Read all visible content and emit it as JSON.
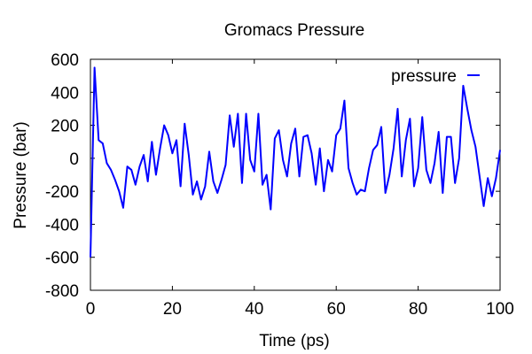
{
  "chart_data": {
    "type": "line",
    "title": "Gromacs Pressure",
    "xlabel": "Time (ps)",
    "ylabel": "Pressure (bar)",
    "xlim": [
      0,
      100
    ],
    "ylim": [
      -800,
      600
    ],
    "xticks": [
      0,
      20,
      40,
      60,
      80,
      100
    ],
    "yticks": [
      -800,
      -600,
      -400,
      -200,
      0,
      200,
      400,
      600
    ],
    "grid": false,
    "legend_position": "top-right",
    "series": [
      {
        "name": "pressure",
        "color": "#0000ff",
        "x": [
          0,
          1,
          2,
          3,
          4,
          5,
          6,
          7,
          8,
          9,
          10,
          11,
          12,
          13,
          14,
          15,
          16,
          17,
          18,
          19,
          20,
          21,
          22,
          23,
          24,
          25,
          26,
          27,
          28,
          29,
          30,
          31,
          32,
          33,
          34,
          35,
          36,
          37,
          38,
          39,
          40,
          41,
          42,
          43,
          44,
          45,
          46,
          47,
          48,
          49,
          50,
          51,
          52,
          53,
          54,
          55,
          56,
          57,
          58,
          59,
          60,
          61,
          62,
          63,
          64,
          65,
          66,
          67,
          68,
          69,
          70,
          71,
          72,
          73,
          74,
          75,
          76,
          77,
          78,
          79,
          80,
          81,
          82,
          83,
          84,
          85,
          86,
          87,
          88,
          89,
          90,
          91,
          92,
          93,
          94,
          95,
          96,
          97,
          98,
          99,
          100
        ],
        "y": [
          -600,
          550,
          110,
          90,
          -30,
          -70,
          -130,
          -200,
          -300,
          -50,
          -70,
          -160,
          -50,
          20,
          -140,
          100,
          -100,
          60,
          200,
          140,
          30,
          110,
          -170,
          210,
          20,
          -220,
          -140,
          -250,
          -170,
          40,
          -140,
          -210,
          -130,
          -40,
          260,
          70,
          270,
          -150,
          270,
          -10,
          -80,
          270,
          -160,
          -100,
          -310,
          120,
          170,
          -10,
          -110,
          90,
          180,
          -110,
          130,
          140,
          30,
          -160,
          60,
          -200,
          -10,
          -80,
          140,
          180,
          350,
          -60,
          -150,
          -220,
          -190,
          -200,
          -60,
          50,
          80,
          190,
          -210,
          -100,
          60,
          300,
          -110,
          110,
          240,
          -170,
          -60,
          250,
          -70,
          -150,
          -30,
          160,
          -210,
          130,
          130,
          -150,
          0,
          440,
          300,
          170,
          70,
          -110,
          -290,
          -120,
          -230,
          -120,
          50
        ]
      }
    ]
  }
}
